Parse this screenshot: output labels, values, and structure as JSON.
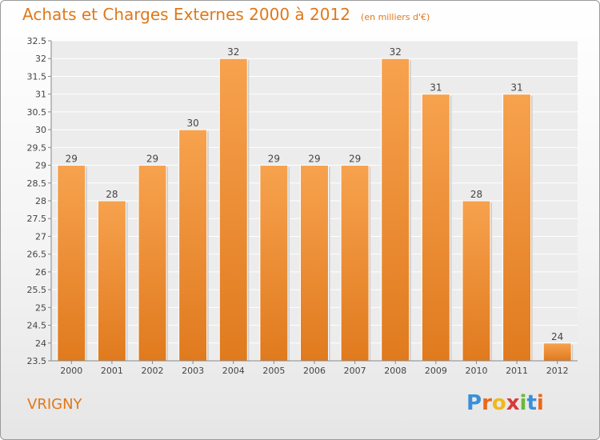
{
  "title": "Achats et Charges Externes 2000 à 2012",
  "unit_note": "(en milliers d'€)",
  "commune": "VRIGNY",
  "logo": {
    "text": "Proxiti",
    "letters": [
      "P",
      "r",
      "o",
      "x",
      "i",
      "t",
      "i"
    ],
    "colors": [
      "#3a8fd8",
      "#e8681a",
      "#f0b81c",
      "#d83a3a",
      "#6ab83a",
      "#3a8fd8",
      "#e8681a"
    ]
  },
  "chart_data": {
    "type": "bar",
    "categories": [
      "2000",
      "2001",
      "2002",
      "2003",
      "2004",
      "2005",
      "2006",
      "2007",
      "2008",
      "2009",
      "2010",
      "2011",
      "2012"
    ],
    "values": [
      29,
      28,
      29,
      30,
      32,
      29,
      29,
      29,
      32,
      31,
      28,
      31,
      24
    ],
    "value_labels": [
      "29",
      "28",
      "29",
      "30",
      "32",
      "29",
      "29",
      "29",
      "32",
      "31",
      "28",
      "31",
      "24"
    ],
    "ylim": [
      23.5,
      32.5
    ],
    "yticks": [
      "23.5",
      "24",
      "24.5",
      "25",
      "25.5",
      "26",
      "26.5",
      "27",
      "27.5",
      "28",
      "28.5",
      "29",
      "29.5",
      "30",
      "30.5",
      "31",
      "31.5",
      "32",
      "32.5"
    ],
    "grid": true,
    "bar_color_top": "#f7a24e",
    "bar_color_bottom": "#e07a1e"
  }
}
